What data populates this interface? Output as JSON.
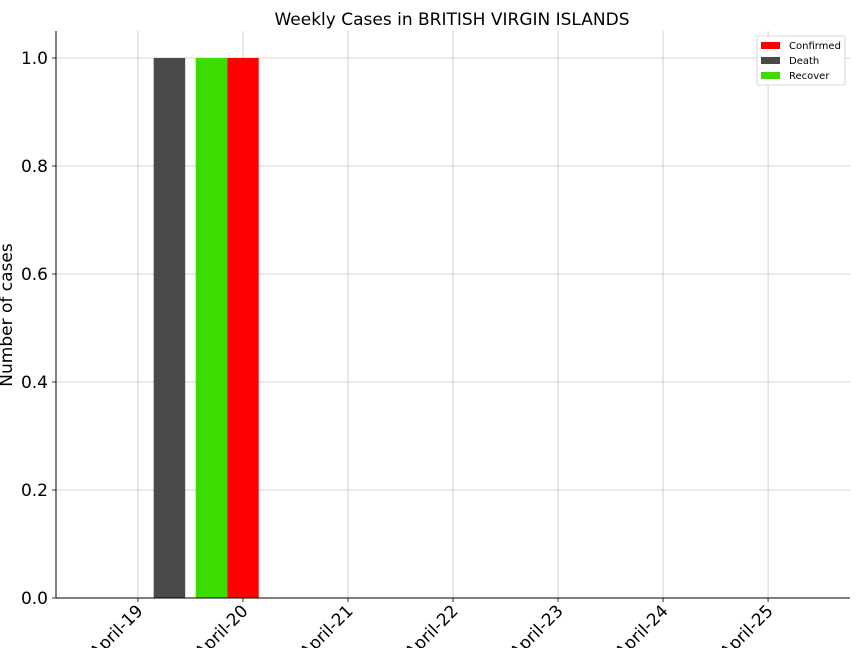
{
  "chart_data": {
    "type": "bar",
    "title": "Weekly Cases in BRITISH VIRGIN ISLANDS",
    "xlabel": "",
    "ylabel": "Number of cases",
    "categories": [
      "April-19",
      "April-20",
      "April-21",
      "April-22",
      "April-23",
      "April-24",
      "April-25"
    ],
    "yticks": [
      "0.0",
      "0.2",
      "0.4",
      "0.6",
      "0.8",
      "1.0"
    ],
    "ytick_values": [
      0,
      0.2,
      0.4,
      0.6,
      0.8,
      1.0
    ],
    "ylim": [
      0,
      1.05
    ],
    "xlim": [
      -0.78,
      6.78
    ],
    "grid": true,
    "legend_position": "top-right",
    "series": [
      {
        "name": "Confirmed",
        "color": "#ff0000",
        "values": [
          0,
          0,
          0,
          0,
          0,
          0,
          0
        ],
        "x": [
          2,
          3,
          4,
          5,
          6,
          7,
          8
        ],
        "nonzero": [
          {
            "x": 1.0,
            "value": 1
          }
        ]
      },
      {
        "name": "Death",
        "color": "#4a4a4a",
        "values": [
          0,
          0,
          0,
          0,
          0,
          0,
          0
        ],
        "nonzero": [
          {
            "x": 0.3,
            "value": 1
          }
        ]
      },
      {
        "name": "Recover",
        "color": "#3cdc00",
        "values": [
          0,
          0,
          0,
          0,
          0,
          0,
          0
        ],
        "nonzero": [
          {
            "x": 0.7,
            "value": 1
          }
        ]
      }
    ]
  }
}
